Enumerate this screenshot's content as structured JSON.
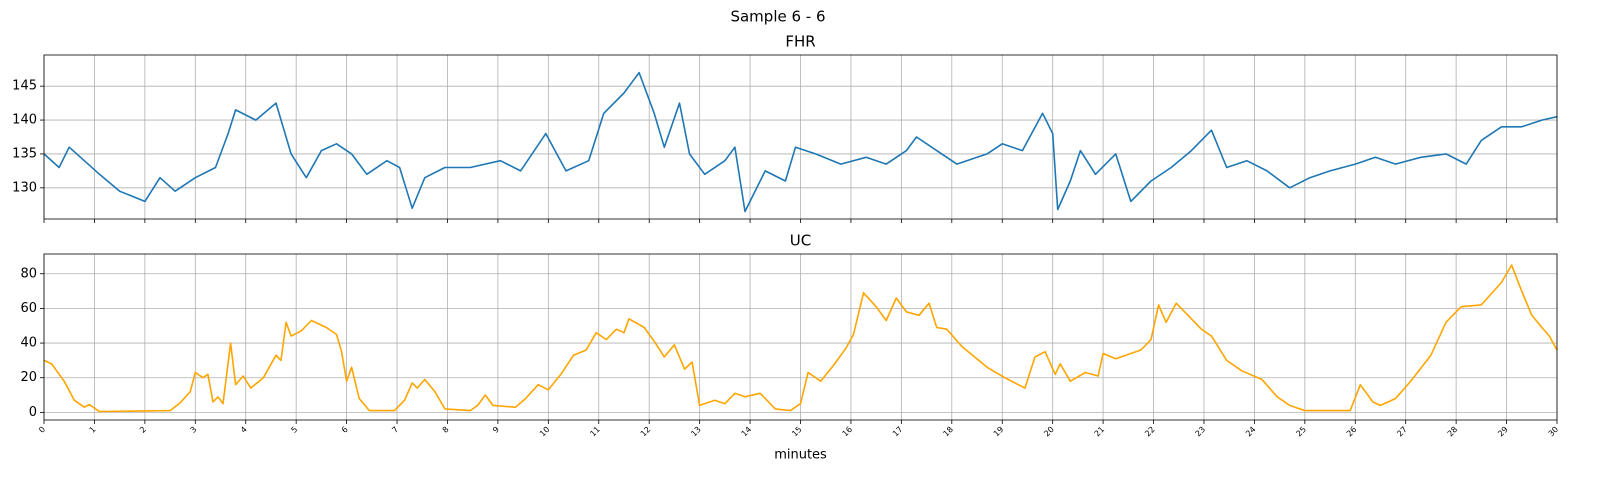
{
  "title": "Sample 6 - 6",
  "chart_data": [
    {
      "type": "line",
      "title": "FHR",
      "color": "#1f77b4",
      "grid": true,
      "xlim": [
        0,
        30
      ],
      "xticks": [
        0,
        1,
        2,
        3,
        4,
        5,
        6,
        7,
        8,
        9,
        10,
        11,
        12,
        13,
        14,
        15,
        16,
        17,
        18,
        19,
        20,
        21,
        22,
        23,
        24,
        25,
        26,
        27,
        28,
        29,
        30
      ],
      "ylim": [
        125.4,
        149.6
      ],
      "yticks": [
        130,
        135,
        140,
        145
      ],
      "x": [
        0,
        0.3,
        0.5,
        0.8,
        1.1,
        1.5,
        2,
        2.3,
        2.6,
        3,
        3.4,
        3.65,
        3.8,
        4.2,
        4.6,
        4.9,
        5.2,
        5.5,
        5.8,
        6.1,
        6.4,
        6.8,
        7.05,
        7.3,
        7.55,
        7.95,
        8.45,
        9.05,
        9.45,
        9.95,
        10.35,
        10.8,
        11.1,
        11.5,
        11.8,
        12.1,
        12.3,
        12.6,
        12.8,
        13.1,
        13.5,
        13.7,
        13.9,
        14.3,
        14.7,
        14.9,
        15.3,
        15.8,
        16.3,
        16.7,
        17.1,
        17.3,
        17.7,
        18.1,
        18.7,
        19,
        19.4,
        19.8,
        20,
        20.1,
        20.35,
        20.55,
        20.85,
        21.25,
        21.55,
        21.95,
        22.35,
        22.75,
        23.15,
        23.45,
        23.85,
        24.25,
        24.7,
        25.1,
        25.5,
        26,
        26.4,
        26.8,
        27.3,
        27.8,
        28.2,
        28.5,
        28.9,
        29.3,
        29.7,
        30
      ],
      "values": [
        135,
        133,
        136,
        134,
        132,
        129.5,
        128,
        131.5,
        129.5,
        131.5,
        133,
        138,
        141.5,
        140,
        142.5,
        135,
        131.5,
        135.5,
        136.5,
        135,
        132,
        134,
        133,
        127,
        131.5,
        133,
        133,
        134,
        132.5,
        138,
        132.5,
        134,
        141,
        144,
        147,
        141,
        136,
        142.5,
        135,
        132,
        134,
        136,
        126.5,
        132.5,
        131,
        136,
        135,
        133.5,
        134.5,
        133.5,
        135.5,
        137.5,
        135.5,
        133.5,
        135,
        136.5,
        135.5,
        141,
        138,
        126.8,
        131,
        135.5,
        132,
        135,
        128,
        131,
        133,
        135.5,
        138.5,
        133,
        134,
        132.5,
        130,
        131.5,
        132.5,
        133.5,
        134.5,
        133.5,
        134.5,
        135,
        133.5,
        137,
        139,
        139,
        140,
        140.5
      ]
    },
    {
      "type": "line",
      "title": "UC",
      "color": "#ffa500",
      "grid": true,
      "xlabel": "minutes",
      "xlim": [
        0,
        30
      ],
      "xticks": [
        0,
        1,
        2,
        3,
        4,
        5,
        6,
        7,
        8,
        9,
        10,
        11,
        12,
        13,
        14,
        15,
        16,
        17,
        18,
        19,
        20,
        21,
        22,
        23,
        24,
        25,
        26,
        27,
        28,
        29,
        30
      ],
      "ylim": [
        -4.4,
        91.4
      ],
      "yticks": [
        0,
        20,
        40,
        60,
        80
      ],
      "x": [
        0,
        0.15,
        0.4,
        0.6,
        0.8,
        0.9,
        1.1,
        2.5,
        2.7,
        2.9,
        3,
        3.15,
        3.25,
        3.35,
        3.45,
        3.55,
        3.7,
        3.8,
        3.95,
        4.1,
        4.35,
        4.6,
        4.7,
        4.8,
        4.9,
        5.1,
        5.3,
        5.6,
        5.8,
        5.9,
        6,
        6.1,
        6.25,
        6.45,
        6.95,
        7.15,
        7.3,
        7.4,
        7.55,
        7.75,
        7.95,
        8.45,
        8.6,
        8.75,
        8.9,
        9.35,
        9.55,
        9.8,
        10,
        10.25,
        10.5,
        10.75,
        10.95,
        11.15,
        11.35,
        11.5,
        11.6,
        11.9,
        12.1,
        12.3,
        12.5,
        12.7,
        12.85,
        13,
        13.3,
        13.5,
        13.7,
        13.9,
        14.2,
        14.5,
        14.8,
        15,
        15.15,
        15.4,
        15.65,
        15.9,
        16.05,
        16.25,
        16.5,
        16.7,
        16.9,
        17.1,
        17.35,
        17.55,
        17.7,
        17.9,
        18.2,
        18.7,
        19.05,
        19.45,
        19.65,
        19.85,
        20.05,
        20.15,
        20.35,
        20.65,
        20.9,
        21,
        21.25,
        21.75,
        21.95,
        22.1,
        22.25,
        22.45,
        22.75,
        22.95,
        23.15,
        23.45,
        23.75,
        24.15,
        24.45,
        24.7,
        25,
        25.9,
        26.1,
        26.35,
        26.5,
        26.8,
        27.1,
        27.5,
        27.8,
        28.1,
        28.5,
        28.9,
        29.1,
        29.3,
        29.5,
        29.7,
        29.85,
        30
      ],
      "values": [
        30,
        28,
        18,
        7,
        3,
        4.5,
        0.5,
        1,
        5.5,
        12,
        23,
        20,
        22,
        6,
        9,
        5,
        40,
        16,
        21,
        14,
        20,
        33,
        30,
        52,
        44,
        47,
        53,
        49,
        45,
        35,
        18,
        26,
        8,
        1,
        1,
        7,
        17,
        14,
        19,
        12,
        2,
        1,
        4,
        10,
        4,
        3,
        8,
        16,
        13,
        22,
        33,
        36,
        46,
        42,
        48,
        46,
        54,
        49,
        41,
        32,
        39,
        25,
        29,
        4,
        7,
        5,
        11,
        9,
        11,
        2,
        1,
        5,
        23,
        18,
        27,
        37,
        45,
        69,
        61,
        53,
        66,
        58,
        56,
        63,
        49,
        48,
        38,
        26,
        20,
        14,
        32,
        35,
        22,
        28,
        18,
        23,
        21,
        34,
        31,
        36,
        42,
        62,
        52,
        63,
        54,
        48,
        44,
        30,
        24,
        19,
        9,
        4,
        1,
        1,
        16,
        6,
        4,
        8,
        18,
        33,
        52,
        61,
        62,
        75,
        85,
        70,
        56,
        49,
        44,
        36
      ]
    }
  ]
}
